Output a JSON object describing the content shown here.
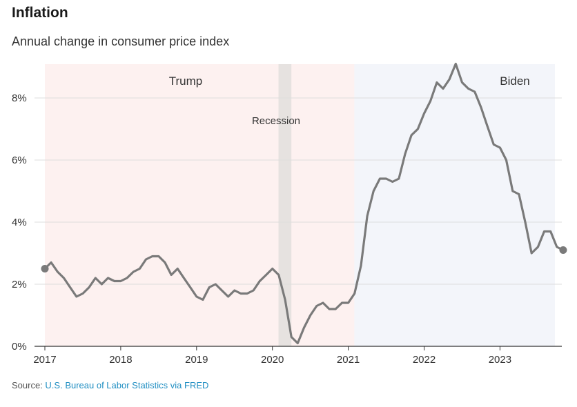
{
  "header": {
    "title": "Inflation",
    "subtitle": "Annual change in consumer price index"
  },
  "footer": {
    "source_prefix": "Source: ",
    "source_link": "U.S. Bureau of Labor Statistics via FRED"
  },
  "colors": {
    "line": "#7a7a7a",
    "trump_band": "#fdf1f0",
    "biden_band": "#f3f5fa",
    "recession_band": "#e6e2e0",
    "grid": "#dddddd",
    "axis": "#333333"
  },
  "chart_data": {
    "type": "line",
    "title": "Inflation",
    "subtitle": "Annual change in consumer price index",
    "xlabel": "",
    "ylabel": "",
    "xlim": [
      2017.0,
      2024.0
    ],
    "ylim": [
      0,
      9
    ],
    "grid": true,
    "x_ticks": [
      {
        "value": 2017,
        "label": "2017"
      },
      {
        "value": 2018,
        "label": "2018"
      },
      {
        "value": 2019,
        "label": "2019"
      },
      {
        "value": 2020,
        "label": "2020"
      },
      {
        "value": 2021,
        "label": "2021"
      },
      {
        "value": 2022,
        "label": "2022"
      },
      {
        "value": 2023,
        "label": "2023"
      }
    ],
    "y_ticks": [
      {
        "value": 0,
        "label": "0%"
      },
      {
        "value": 2,
        "label": "2%"
      },
      {
        "value": 4,
        "label": "4%"
      },
      {
        "value": 6,
        "label": "6%"
      },
      {
        "value": 8,
        "label": "8%"
      }
    ],
    "shaded_periods": [
      {
        "label": "Trump",
        "start": 2017.0,
        "end": 2021.08,
        "color_key": "trump_band"
      },
      {
        "label": "Recession",
        "start": 2020.08,
        "end": 2020.25,
        "color_key": "recession_band"
      },
      {
        "label": "Biden",
        "start": 2021.08,
        "end": 2024.0,
        "color_key": "biden_band"
      }
    ],
    "series": [
      {
        "x": [
          2017.0,
          2017.083,
          2017.167,
          2017.25,
          2017.333,
          2017.417,
          2017.5,
          2017.583,
          2017.667,
          2017.75,
          2017.833,
          2017.917,
          2018.0,
          2018.083,
          2018.167,
          2018.25,
          2018.333,
          2018.417,
          2018.5,
          2018.583,
          2018.667,
          2018.75,
          2018.833,
          2018.917,
          2019.0,
          2019.083,
          2019.167,
          2019.25,
          2019.333,
          2019.417,
          2019.5,
          2019.583,
          2019.667,
          2019.75,
          2019.833,
          2019.917,
          2020.0,
          2020.083,
          2020.167,
          2020.25,
          2020.333,
          2020.417,
          2020.5,
          2020.583,
          2020.667,
          2020.75,
          2020.833,
          2020.917,
          2021.0,
          2021.083,
          2021.167,
          2021.25,
          2021.333,
          2021.417,
          2021.5,
          2021.583,
          2021.667,
          2021.75,
          2021.833,
          2021.917,
          2022.0,
          2022.083,
          2022.167,
          2022.25,
          2022.333,
          2022.417,
          2022.5,
          2022.583,
          2022.667,
          2022.75,
          2022.833,
          2022.917,
          2023.0,
          2023.083,
          2023.167,
          2023.25,
          2023.333,
          2023.417,
          2023.5,
          2023.583,
          2023.667,
          2023.75,
          2023.833
        ],
        "values": [
          2.5,
          2.7,
          2.4,
          2.2,
          1.9,
          1.6,
          1.7,
          1.9,
          2.2,
          2.0,
          2.2,
          2.1,
          2.1,
          2.2,
          2.4,
          2.5,
          2.8,
          2.9,
          2.9,
          2.7,
          2.3,
          2.5,
          2.2,
          1.9,
          1.6,
          1.5,
          1.9,
          2.0,
          1.8,
          1.6,
          1.8,
          1.7,
          1.7,
          1.8,
          2.1,
          2.3,
          2.5,
          2.3,
          1.5,
          0.3,
          0.1,
          0.6,
          1.0,
          1.3,
          1.4,
          1.2,
          1.2,
          1.4,
          1.4,
          1.7,
          2.6,
          4.2,
          5.0,
          5.4,
          5.4,
          5.3,
          5.4,
          6.2,
          6.8,
          7.0,
          7.5,
          7.9,
          8.5,
          8.3,
          8.6,
          9.1,
          8.5,
          8.3,
          8.2,
          7.7,
          7.1,
          6.5,
          6.4,
          6.0,
          5.0,
          4.9,
          4.0,
          3.0,
          3.2,
          3.7,
          3.7,
          3.2,
          3.1
        ]
      }
    ],
    "end_markers": true
  }
}
